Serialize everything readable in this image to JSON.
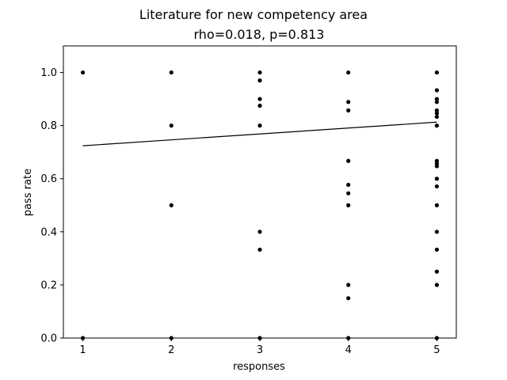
{
  "chart_data": {
    "type": "scatter",
    "title": "Literature for new competency area",
    "subtitle": "rho=0.018, p=0.813",
    "xlabel": "responses",
    "ylabel": "pass rate",
    "xlim": [
      0.78,
      5.22
    ],
    "ylim": [
      0.0,
      1.1
    ],
    "xticks": [
      1,
      2,
      3,
      4,
      5
    ],
    "yticks": [
      0.0,
      0.2,
      0.4,
      0.6,
      0.8,
      1.0
    ],
    "ytick_labels": [
      "0.0",
      "0.2",
      "0.4",
      "0.6",
      "0.8",
      "1.0"
    ],
    "grid": false,
    "points": [
      {
        "x": 1,
        "y": 1.0
      },
      {
        "x": 1,
        "y": 0.0
      },
      {
        "x": 2,
        "y": 1.0
      },
      {
        "x": 2,
        "y": 0.8
      },
      {
        "x": 2,
        "y": 0.5
      },
      {
        "x": 2,
        "y": 0.0
      },
      {
        "x": 3,
        "y": 1.0
      },
      {
        "x": 3,
        "y": 0.97
      },
      {
        "x": 3,
        "y": 0.9
      },
      {
        "x": 3,
        "y": 0.875
      },
      {
        "x": 3,
        "y": 0.8
      },
      {
        "x": 3,
        "y": 0.4
      },
      {
        "x": 3,
        "y": 0.333
      },
      {
        "x": 3,
        "y": 0.0
      },
      {
        "x": 4,
        "y": 1.0
      },
      {
        "x": 4,
        "y": 0.889
      },
      {
        "x": 4,
        "y": 0.857
      },
      {
        "x": 4,
        "y": 0.667
      },
      {
        "x": 4,
        "y": 0.577
      },
      {
        "x": 4,
        "y": 0.545
      },
      {
        "x": 4,
        "y": 0.5
      },
      {
        "x": 4,
        "y": 0.2
      },
      {
        "x": 4,
        "y": 0.15
      },
      {
        "x": 4,
        "y": 0.0
      },
      {
        "x": 5,
        "y": 1.0
      },
      {
        "x": 5,
        "y": 0.933
      },
      {
        "x": 5,
        "y": 0.9
      },
      {
        "x": 5,
        "y": 0.889
      },
      {
        "x": 5,
        "y": 0.857
      },
      {
        "x": 5,
        "y": 0.846
      },
      {
        "x": 5,
        "y": 0.833
      },
      {
        "x": 5,
        "y": 0.8
      },
      {
        "x": 5,
        "y": 0.667
      },
      {
        "x": 5,
        "y": 0.657
      },
      {
        "x": 5,
        "y": 0.647
      },
      {
        "x": 5,
        "y": 0.6
      },
      {
        "x": 5,
        "y": 0.571
      },
      {
        "x": 5,
        "y": 0.5
      },
      {
        "x": 5,
        "y": 0.4
      },
      {
        "x": 5,
        "y": 0.333
      },
      {
        "x": 5,
        "y": 0.25
      },
      {
        "x": 5,
        "y": 0.2
      },
      {
        "x": 5,
        "y": 0.0
      }
    ],
    "fit_line": {
      "x": [
        1,
        5
      ],
      "y": [
        0.724,
        0.813
      ]
    },
    "colors": {
      "points": "#000000",
      "line": "#000000",
      "axes": "#000000"
    }
  }
}
